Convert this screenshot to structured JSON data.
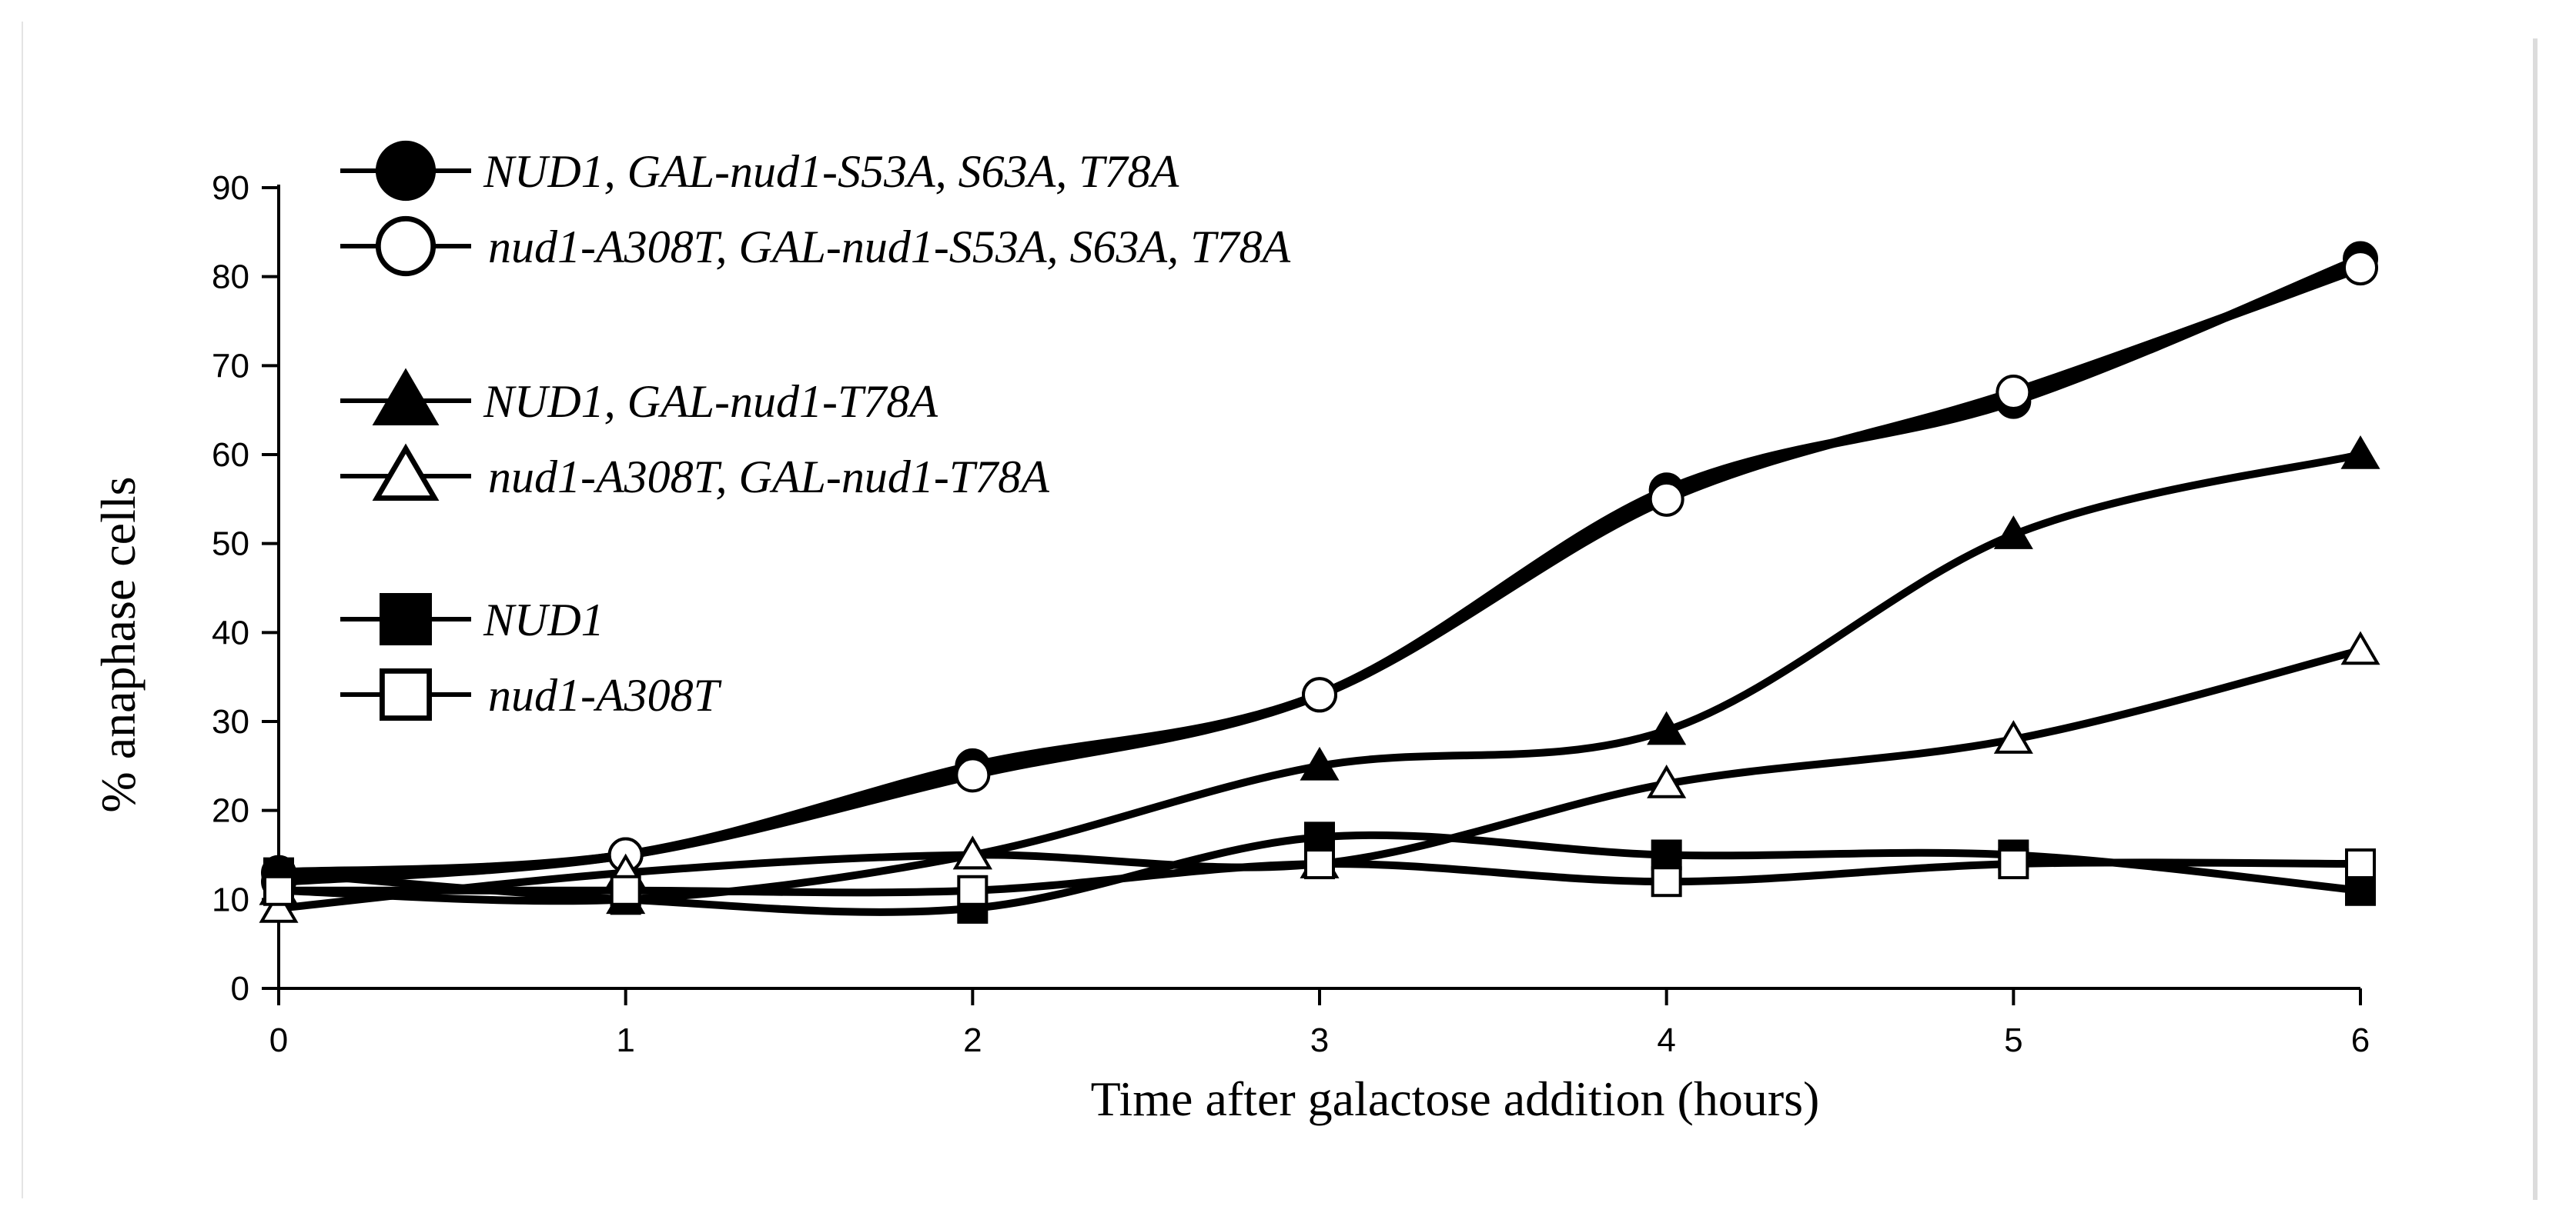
{
  "chart_data": {
    "type": "line",
    "title": "",
    "xlabel": "Time after galactose addition (hours)",
    "ylabel": "% anaphase cells",
    "x": [
      0,
      1,
      2,
      3,
      4,
      5,
      6
    ],
    "xticks": [
      "0",
      "1",
      "2",
      "3",
      "4",
      "5",
      "6"
    ],
    "yticks": [
      "0",
      "10",
      "20",
      "30",
      "40",
      "50",
      "60",
      "70",
      "80",
      "90"
    ],
    "xlim": [
      0,
      6
    ],
    "ylim": [
      0,
      90
    ],
    "grid": false,
    "legend_position": "top-left",
    "series": [
      {
        "name": "NUD1, GAL-nud1-S53A, S63A, T78A",
        "marker": "circle-filled",
        "values": [
          13,
          15,
          25,
          33,
          56,
          66,
          82
        ]
      },
      {
        "name": "nud1-A308T, GAL-nud1-S53A, S63A, T78A",
        "marker": "circle-open",
        "values": [
          12,
          15,
          24,
          33,
          55,
          67,
          81
        ]
      },
      {
        "name": "NUD1, GAL-nud1-T78A",
        "marker": "triangle-filled",
        "values": [
          11,
          10,
          15,
          25,
          29,
          51,
          60
        ]
      },
      {
        "name": "nud1-A308T, GAL-nud1-T78A",
        "marker": "triangle-open",
        "values": [
          9,
          13,
          15,
          14,
          23,
          28,
          38
        ]
      },
      {
        "name": "NUD1",
        "marker": "square-filled",
        "values": [
          13,
          10,
          9,
          17,
          15,
          15,
          11
        ]
      },
      {
        "name": "nud1-A308T",
        "marker": "square-open",
        "values": [
          11,
          11,
          11,
          14,
          12,
          14,
          14
        ]
      }
    ]
  }
}
